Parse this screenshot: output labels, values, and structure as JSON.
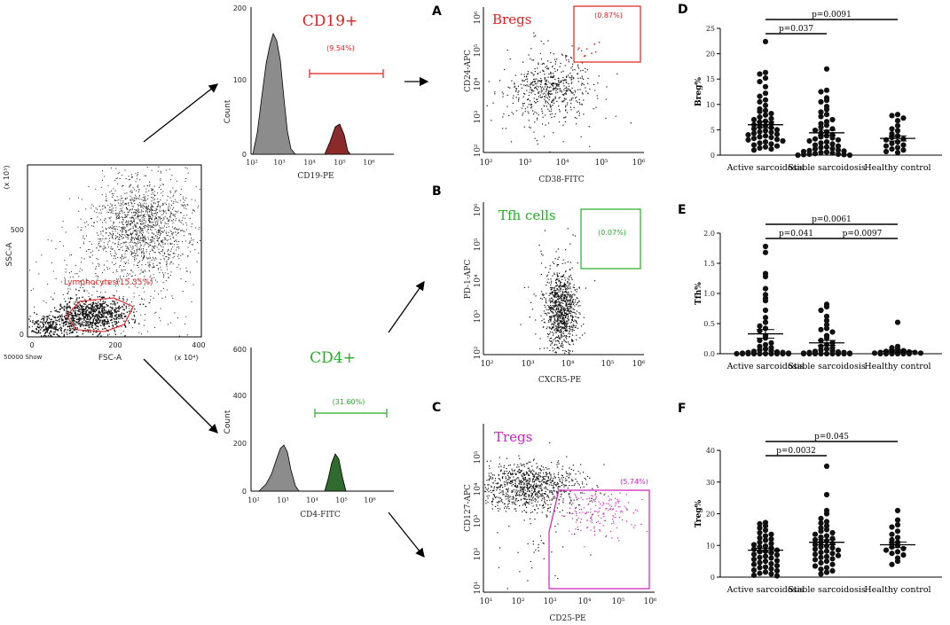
{
  "figure": {
    "panel_letters": [
      "A",
      "B",
      "C",
      "D",
      "E",
      "F"
    ],
    "colors": {
      "red": "#e02020",
      "green": "#22b022",
      "magenta": "#d020c0",
      "dark_red_fill": "#8b2a2a",
      "dark_green_fill": "#2f6a2f",
      "grey_fill": "#8c8c8c"
    }
  },
  "chart_data": [
    {
      "id": "gating",
      "type": "scatter",
      "title": "",
      "gate_label": "Lymphocytes(15.35%)",
      "xlabel": "FSC-A",
      "ylabel": "SSC-A",
      "x_ticks": [
        "0",
        "200",
        "400"
      ],
      "y_ticks": [
        "0",
        "500"
      ],
      "x_multiplier": "(x 10⁴)",
      "y_multiplier": "(x 10³)",
      "x_range": [
        0,
        400
      ],
      "y_range": [
        0,
        900
      ],
      "footer": "50000 Show"
    },
    {
      "id": "cd19-hist",
      "type": "area",
      "title": "CD19+",
      "gate_pct": "(9.54%)",
      "xlabel": "CD19-PE",
      "ylabel": "Count",
      "x_ticks": [
        "10²",
        "10³",
        "10⁴",
        "10⁵",
        "10⁶"
      ],
      "y_ticks": [
        "0",
        "100",
        "200"
      ],
      "y_range": [
        0,
        200
      ]
    },
    {
      "id": "cd4-hist",
      "type": "area",
      "title": "CD4+",
      "gate_pct": "(31.60%)",
      "xlabel": "CD4-FITC",
      "ylabel": "Count",
      "x_ticks": [
        "10²",
        "10³",
        "10⁴",
        "10⁵",
        "10⁶"
      ],
      "y_ticks": [
        "0",
        "200",
        "400",
        "600"
      ],
      "y_range": [
        0,
        600
      ]
    },
    {
      "id": "bregs",
      "type": "scatter",
      "letter": "A",
      "title": "Bregs",
      "gate_pct": "(0.87%)",
      "xlabel": "CD38-FITC",
      "ylabel": "CD24-APC",
      "x_ticks": [
        "10²",
        "10³",
        "10⁴",
        "10⁵",
        "10⁶"
      ],
      "y_ticks": [
        "10²",
        "10³",
        "10⁴",
        "10⁵",
        "10⁶"
      ]
    },
    {
      "id": "tfh",
      "type": "scatter",
      "letter": "B",
      "title": "Tfh cells",
      "gate_pct": "(0.07%)",
      "xlabel": "CXCR5-PE",
      "ylabel": "PD-1-APC",
      "x_ticks": [
        "10²",
        "10³",
        "10⁴",
        "10⁵",
        "10⁶"
      ],
      "y_ticks": [
        "10²",
        "10³",
        "10⁴",
        "10⁵",
        "10⁶"
      ]
    },
    {
      "id": "tregs",
      "type": "scatter",
      "letter": "C",
      "title": "Tregs",
      "gate_pct": "(5.74%)",
      "xlabel": "CD25-PE",
      "ylabel": "CD127-APC",
      "x_ticks": [
        "10¹",
        "10²",
        "10³",
        "10⁴",
        "10⁵",
        "10⁶"
      ],
      "y_ticks": [
        "10¹",
        "10²",
        "10³",
        "10⁴",
        "10⁵"
      ]
    },
    {
      "id": "breg-dot",
      "type": "scatter",
      "letter": "D",
      "ylabel": "Breg%",
      "categories": [
        "Active sarcoidosis",
        "Stable sarcoidosis",
        "Healthy control"
      ],
      "ylim": [
        0,
        25
      ],
      "y_ticks": [
        0,
        5,
        10,
        15,
        20,
        25
      ],
      "means": [
        6.0,
        4.4,
        3.3
      ],
      "sems": [
        0.6,
        0.5,
        0.5
      ],
      "comparisons": [
        {
          "from": 0,
          "to": 1,
          "label": "p=0.037",
          "level": 0
        },
        {
          "from": 0,
          "to": 2,
          "label": "p=0.0091",
          "level": 1
        }
      ],
      "series": [
        {
          "name": "Active sarcoidosis",
          "values": [
            22.4,
            16.3,
            16.0,
            15.2,
            14.5,
            13.5,
            12.2,
            11.6,
            10.9,
            10.5,
            9.8,
            9.1,
            8.8,
            8.6,
            8.2,
            7.9,
            7.5,
            7.2,
            7.0,
            6.7,
            6.5,
            6.2,
            6.0,
            5.8,
            5.6,
            5.4,
            5.2,
            5.0,
            4.8,
            4.6,
            4.5,
            4.3,
            4.1,
            4.0,
            3.8,
            3.6,
            3.5,
            3.3,
            3.1,
            3.0,
            2.8,
            2.6,
            2.4,
            2.2,
            2.0,
            1.8,
            1.6,
            1.4,
            1.2,
            1.0
          ]
        },
        {
          "name": "Stable sarcoidosis",
          "values": [
            17.0,
            12.8,
            12.5,
            11.3,
            10.8,
            10.5,
            9.6,
            9.0,
            8.5,
            8.0,
            7.6,
            7.0,
            6.6,
            6.2,
            5.9,
            5.5,
            5.2,
            4.9,
            4.6,
            4.3,
            4.0,
            3.8,
            3.6,
            3.4,
            3.2,
            3.0,
            2.8,
            2.6,
            2.4,
            2.2,
            2.0,
            1.8,
            1.6,
            1.5,
            1.3,
            1.2,
            1.0,
            0.9,
            0.8,
            0.7,
            0.6,
            0.5,
            0.4,
            0.3,
            0.2,
            0.2,
            0.1,
            0.1,
            0.0,
            0.0
          ]
        },
        {
          "name": "Healthy control",
          "values": [
            8.0,
            7.8,
            7.3,
            6.8,
            5.8,
            5.2,
            4.8,
            4.2,
            3.8,
            3.5,
            3.2,
            3.0,
            2.6,
            2.3,
            2.0,
            1.8,
            1.5,
            1.2,
            1.0,
            0.7,
            0.5
          ]
        }
      ]
    },
    {
      "id": "tfh-dot",
      "type": "scatter",
      "letter": "E",
      "ylabel": "Tfh%",
      "categories": [
        "Active sarcoidosis",
        "Stable sarcoidosis",
        "Healthy control"
      ],
      "ylim": [
        0,
        2.0
      ],
      "y_ticks": [
        "0.0",
        "0.5",
        "1.0",
        "1.5",
        "2.0"
      ],
      "means": [
        0.33,
        0.18,
        0.04
      ],
      "sems": [
        0.07,
        0.04,
        0.02
      ],
      "comparisons": [
        {
          "from": 0,
          "to": 1,
          "label": "p=0.041",
          "level": 0
        },
        {
          "from": 1,
          "to": 2,
          "label": "p=0.0097",
          "level": 0
        },
        {
          "from": 0,
          "to": 2,
          "label": "p=0.0061",
          "level": 1
        }
      ],
      "series": [
        {
          "name": "Active sarcoidosis",
          "values": [
            1.78,
            1.68,
            1.33,
            1.28,
            1.08,
            0.98,
            0.92,
            0.88,
            0.72,
            0.6,
            0.52,
            0.46,
            0.42,
            0.38,
            0.3,
            0.26,
            0.22,
            0.18,
            0.15,
            0.12,
            0.1,
            0.08,
            0.06,
            0.05,
            0.04,
            0.03,
            0.02,
            0.02,
            0.01,
            0.01,
            0.0,
            0.0,
            0.0,
            0.0,
            0.0,
            0.0,
            0.0,
            0.0,
            0.0,
            0.0
          ]
        },
        {
          "name": "Stable sarcoidosis",
          "values": [
            0.82,
            0.78,
            0.72,
            0.62,
            0.55,
            0.48,
            0.42,
            0.4,
            0.36,
            0.3,
            0.26,
            0.22,
            0.18,
            0.15,
            0.12,
            0.1,
            0.08,
            0.06,
            0.05,
            0.04,
            0.03,
            0.02,
            0.02,
            0.01,
            0.01,
            0.0,
            0.0,
            0.0,
            0.0,
            0.0,
            0.0,
            0.0,
            0.0,
            0.0
          ]
        },
        {
          "name": "Healthy control",
          "values": [
            0.52,
            0.12,
            0.1,
            0.08,
            0.06,
            0.05,
            0.04,
            0.03,
            0.02,
            0.02,
            0.01,
            0.01,
            0.0,
            0.0,
            0.0,
            0.0,
            0.0,
            0.0
          ]
        }
      ]
    },
    {
      "id": "treg-dot",
      "type": "scatter",
      "letter": "F",
      "ylabel": "Treg%",
      "categories": [
        "Active sarcoidosis",
        "Stable sarcoidosis",
        "Healthy control"
      ],
      "ylim": [
        0,
        40
      ],
      "y_ticks": [
        0,
        10,
        20,
        30,
        40
      ],
      "means": [
        8.5,
        11.0,
        10.2
      ],
      "sems": [
        0.6,
        0.8,
        0.9
      ],
      "comparisons": [
        {
          "from": 0,
          "to": 1,
          "label": "p=0.0032",
          "level": 0
        },
        {
          "from": 0,
          "to": 2,
          "label": "p=0.045",
          "level": 1
        }
      ],
      "series": [
        {
          "name": "Active sarcoidosis",
          "values": [
            17.2,
            16.8,
            16.2,
            15.5,
            14.8,
            14.0,
            13.5,
            13.0,
            12.4,
            12.0,
            11.6,
            11.0,
            10.6,
            10.2,
            9.8,
            9.5,
            9.2,
            8.8,
            8.5,
            8.2,
            8.0,
            7.6,
            7.2,
            7.0,
            6.6,
            6.2,
            6.0,
            5.6,
            5.2,
            5.0,
            4.6,
            4.2,
            4.0,
            3.6,
            3.2,
            3.0,
            2.6,
            2.2,
            2.0,
            1.6,
            1.2,
            1.0,
            0.6,
            0.4
          ]
        },
        {
          "name": "Stable sarcoidosis",
          "values": [
            35.0,
            26.0,
            21.0,
            20.0,
            18.5,
            17.5,
            17.0,
            16.2,
            15.5,
            15.0,
            14.5,
            14.0,
            13.5,
            13.0,
            12.6,
            12.2,
            11.8,
            11.4,
            11.0,
            10.6,
            10.2,
            9.8,
            9.5,
            9.2,
            8.8,
            8.5,
            8.2,
            7.8,
            7.5,
            7.2,
            6.8,
            6.5,
            6.2,
            5.8,
            5.5,
            5.0,
            4.5,
            4.0,
            3.5,
            3.0,
            2.5,
            2.0,
            1.5,
            1.0
          ]
        },
        {
          "name": "Healthy control",
          "values": [
            21.0,
            18.0,
            16.5,
            15.8,
            14.5,
            13.5,
            12.5,
            11.8,
            11.0,
            10.5,
            10.0,
            9.5,
            9.0,
            8.5,
            8.0,
            7.5,
            7.0,
            6.0,
            5.0,
            4.0
          ]
        }
      ]
    }
  ]
}
